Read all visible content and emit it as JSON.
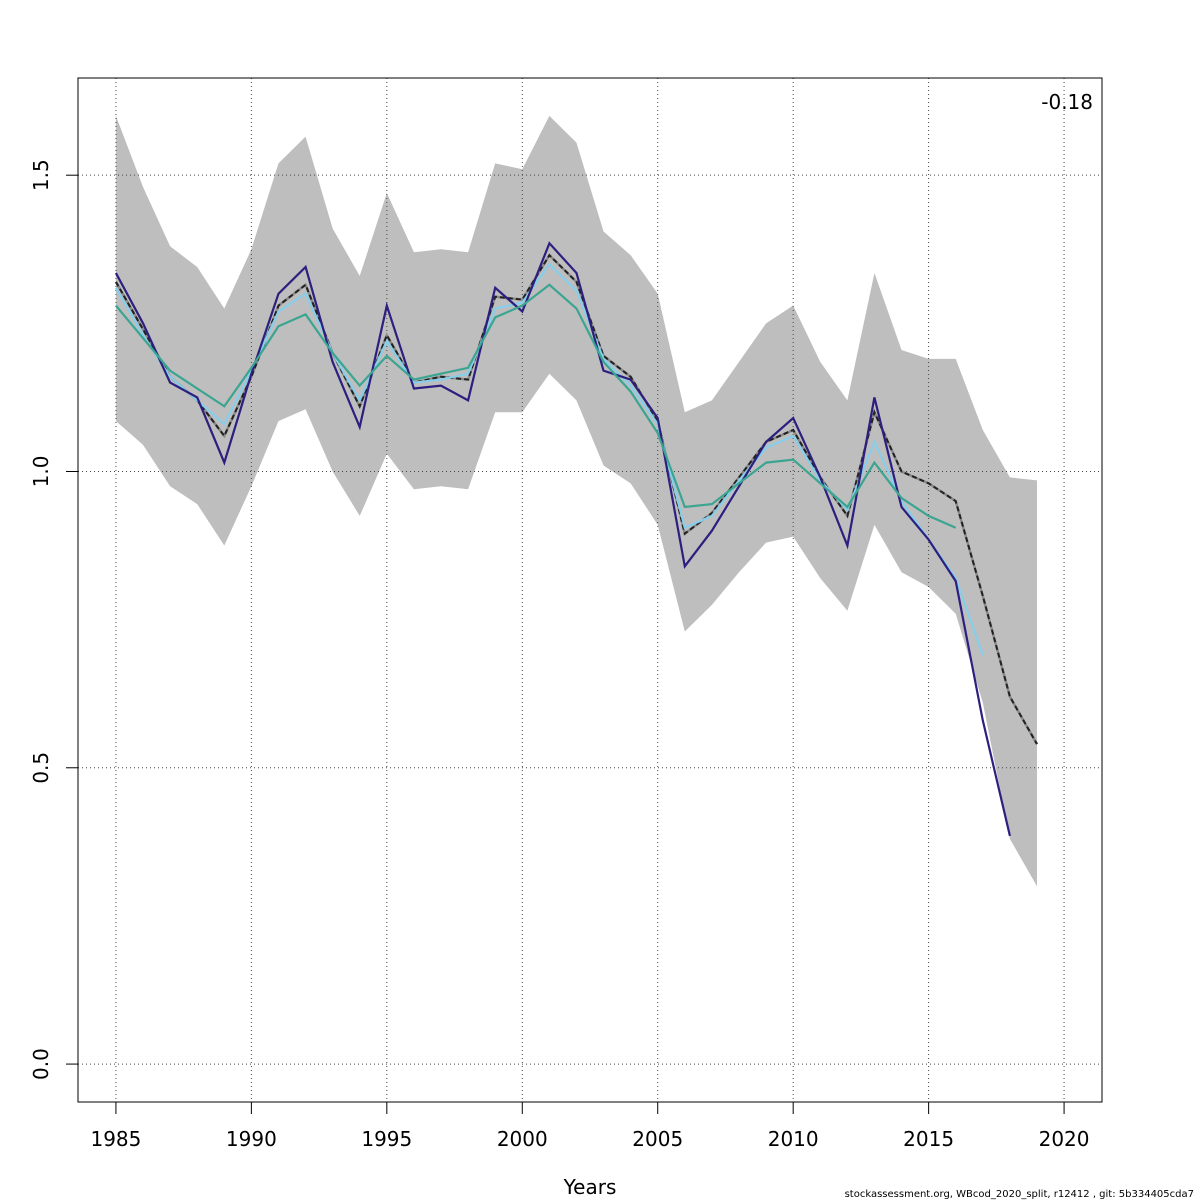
{
  "chart_data": {
    "type": "line",
    "xlabel": "Years",
    "ylabel": "",
    "xlim": [
      1983.6,
      2021.4
    ],
    "ylim": [
      -0.064,
      1.664
    ],
    "xticks": [
      1985,
      1990,
      1995,
      2000,
      2005,
      2010,
      2015,
      2020
    ],
    "yticks": [
      0.0,
      0.5,
      1.0,
      1.5
    ],
    "xtick_labels": [
      "1985",
      "1990",
      "1995",
      "2000",
      "2005",
      "2010",
      "2015",
      "2020"
    ],
    "ytick_labels": [
      "0.0",
      "0.5",
      "1.0",
      "1.5"
    ],
    "grid": true,
    "annotation": "-0.18",
    "confidence_band": {
      "x": [
        1985,
        1986,
        1987,
        1988,
        1989,
        1990,
        1991,
        1992,
        1993,
        1994,
        1995,
        1996,
        1997,
        1998,
        1999,
        2000,
        2001,
        2002,
        2003,
        2004,
        2005,
        2006,
        2007,
        2008,
        2009,
        2010,
        2011,
        2012,
        2013,
        2014,
        2015,
        2016,
        2017,
        2018,
        2019
      ],
      "lower": [
        1.085,
        1.045,
        0.975,
        0.945,
        0.875,
        0.975,
        1.085,
        1.105,
        1.0,
        0.925,
        1.03,
        0.97,
        0.975,
        0.97,
        1.1,
        1.1,
        1.165,
        1.12,
        1.01,
        0.98,
        0.91,
        0.73,
        0.775,
        0.83,
        0.88,
        0.89,
        0.82,
        0.765,
        0.91,
        0.83,
        0.805,
        0.76,
        0.61,
        0.38,
        0.3
      ],
      "upper": [
        1.6,
        1.48,
        1.38,
        1.345,
        1.275,
        1.375,
        1.52,
        1.565,
        1.41,
        1.33,
        1.47,
        1.37,
        1.375,
        1.37,
        1.52,
        1.51,
        1.6,
        1.555,
        1.405,
        1.365,
        1.3,
        1.1,
        1.12,
        1.185,
        1.25,
        1.28,
        1.185,
        1.12,
        1.335,
        1.205,
        1.19,
        1.19,
        1.07,
        0.99,
        0.985
      ]
    },
    "series": [
      {
        "color": "#222222",
        "dashed": true,
        "x": [
          1985,
          1986,
          1987,
          1988,
          1989,
          1990,
          1991,
          1992,
          1993,
          1994,
          1995,
          1996,
          1997,
          1998,
          1999,
          2000,
          2001,
          2002,
          2003,
          2004,
          2005,
          2006,
          2007,
          2008,
          2009,
          2010,
          2011,
          2012,
          2013,
          2014,
          2015,
          2016,
          2017,
          2018,
          2019
        ],
        "values": [
          1.32,
          1.24,
          1.16,
          1.12,
          1.06,
          1.16,
          1.28,
          1.315,
          1.2,
          1.11,
          1.23,
          1.15,
          1.16,
          1.155,
          1.295,
          1.29,
          1.365,
          1.32,
          1.195,
          1.16,
          1.085,
          0.895,
          0.93,
          0.99,
          1.05,
          1.07,
          0.99,
          0.925,
          1.1,
          1.0,
          0.98,
          0.95,
          0.79,
          0.62,
          0.54
        ]
      },
      {
        "color": "#87CEEB",
        "dashed": false,
        "x": [
          1985,
          1986,
          1987,
          1988,
          1989,
          1990,
          1991,
          1992,
          1993,
          1994,
          1995,
          1996,
          1997,
          1998,
          1999,
          2000,
          2001,
          2002,
          2003,
          2004,
          2005,
          2006,
          2007,
          2008,
          2009,
          2010,
          2011,
          2012,
          2013,
          2014,
          2015,
          2016,
          2017
        ],
        "values": [
          1.31,
          1.23,
          1.16,
          1.12,
          1.08,
          1.17,
          1.27,
          1.3,
          1.2,
          1.12,
          1.22,
          1.15,
          1.155,
          1.165,
          1.275,
          1.285,
          1.35,
          1.305,
          1.19,
          1.145,
          1.08,
          0.905,
          0.925,
          0.985,
          1.04,
          1.06,
          0.985,
          0.935,
          1.05,
          0.95,
          0.885,
          0.82,
          0.69
        ]
      },
      {
        "color": "#2C1F7F",
        "dashed": false,
        "x": [
          1985,
          1986,
          1987,
          1988,
          1989,
          1990,
          1991,
          1992,
          1993,
          1994,
          1995,
          1996,
          1997,
          1998,
          1999,
          2000,
          2001,
          2002,
          2003,
          2004,
          2005,
          2006,
          2007,
          2008,
          2009,
          2010,
          2011,
          2012,
          2013,
          2014,
          2015,
          2016,
          2017,
          2018
        ],
        "values": [
          1.335,
          1.25,
          1.15,
          1.125,
          1.015,
          1.165,
          1.3,
          1.345,
          1.185,
          1.075,
          1.28,
          1.14,
          1.145,
          1.12,
          1.31,
          1.27,
          1.385,
          1.335,
          1.17,
          1.155,
          1.09,
          0.84,
          0.9,
          0.975,
          1.05,
          1.09,
          0.99,
          0.875,
          1.125,
          0.94,
          0.885,
          0.815,
          0.58,
          0.385
        ]
      },
      {
        "color": "#3AA590",
        "dashed": false,
        "x": [
          1985,
          1986,
          1987,
          1988,
          1989,
          1990,
          1991,
          1992,
          1993,
          1994,
          1995,
          1996,
          1997,
          1998,
          1999,
          2000,
          2001,
          2002,
          2003,
          2004,
          2005,
          2006,
          2007,
          2008,
          2009,
          2010,
          2011,
          2012,
          2013,
          2014,
          2015,
          2016
        ],
        "values": [
          1.28,
          1.225,
          1.17,
          1.14,
          1.11,
          1.175,
          1.245,
          1.265,
          1.2,
          1.145,
          1.195,
          1.155,
          1.165,
          1.175,
          1.26,
          1.28,
          1.315,
          1.275,
          1.185,
          1.135,
          1.065,
          0.94,
          0.945,
          0.98,
          1.015,
          1.02,
          0.98,
          0.94,
          1.015,
          0.955,
          0.925,
          0.905
        ]
      }
    ]
  },
  "footer": "stockassessment.org, WBcod_2020_split, r12412 , git: 5b334405cda7"
}
